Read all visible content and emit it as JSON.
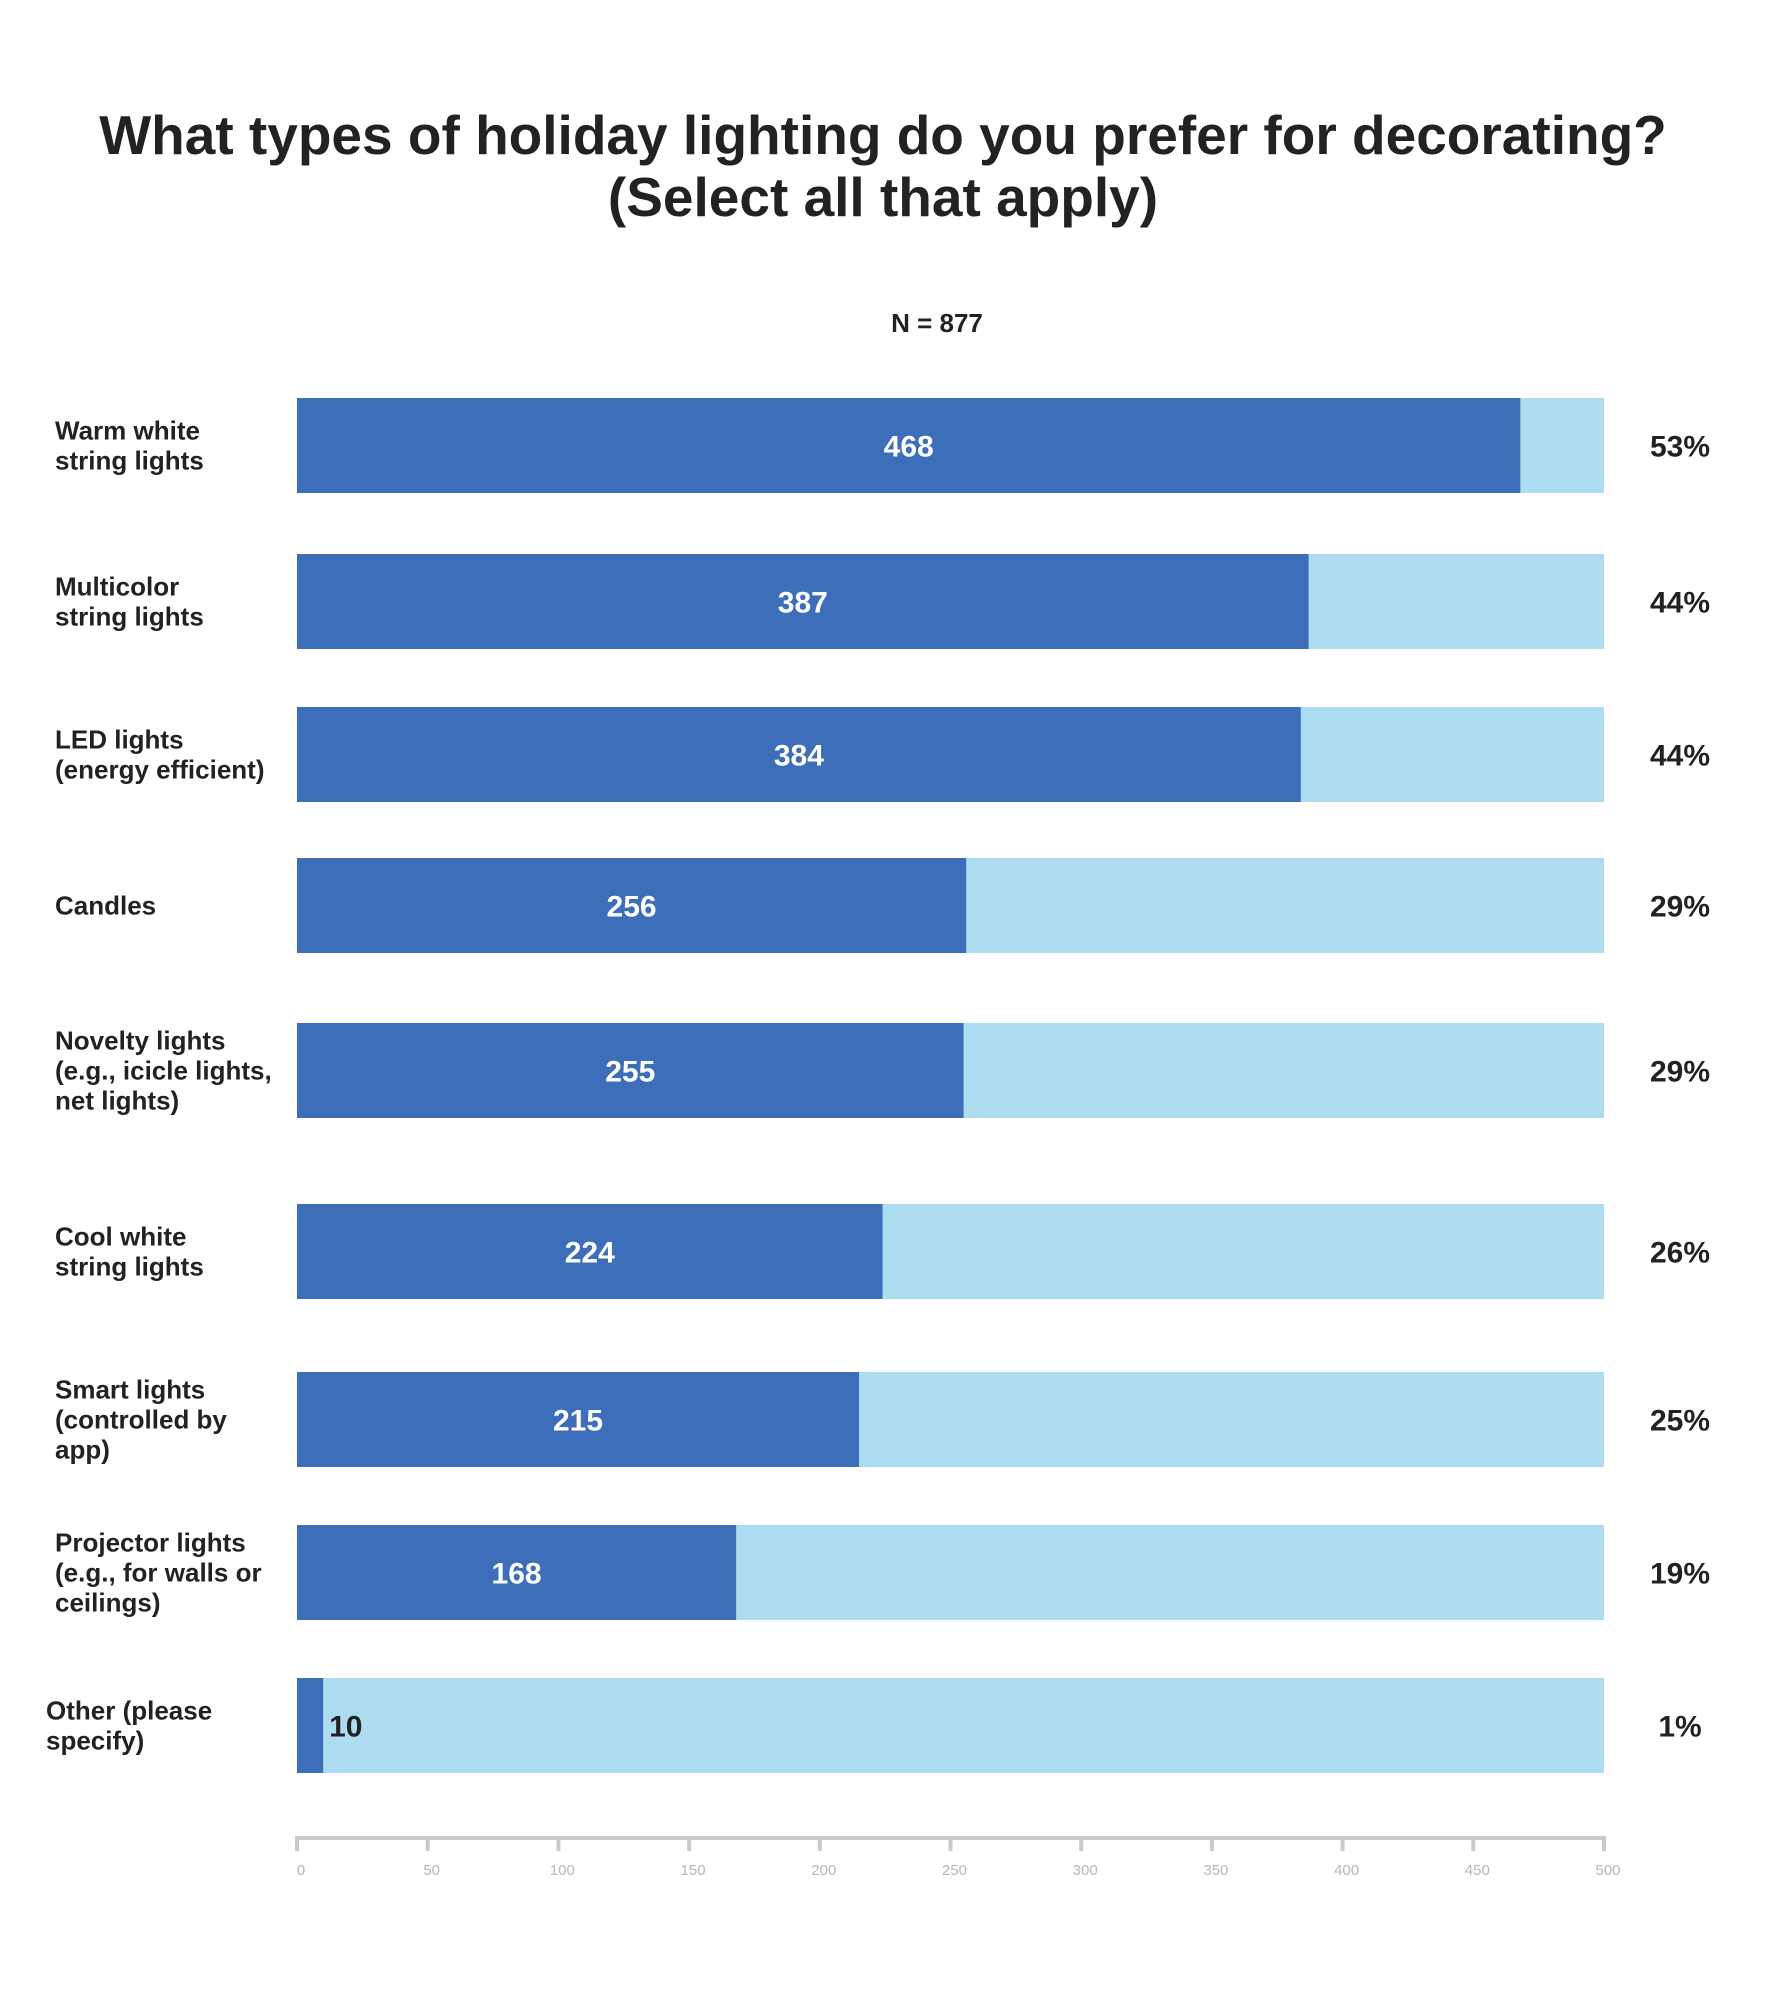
{
  "chart_data": {
    "type": "bar",
    "orientation": "horizontal",
    "title_lines": [
      "What types of holiday lighting do you prefer for decorating?",
      "(Select all that apply)"
    ],
    "subtitle": "N = 877",
    "categories": [
      [
        "Warm white",
        "string lights"
      ],
      [
        "Multicolor",
        "string lights"
      ],
      [
        "LED lights",
        "(energy efficient)"
      ],
      [
        "Candles"
      ],
      [
        "Novelty lights",
        "(e.g., icicle lights,",
        "net lights)"
      ],
      [
        "Cool white",
        "string lights"
      ],
      [
        "Smart lights",
        "(controlled by",
        "app)"
      ],
      [
        "Projector lights",
        "(e.g., for walls or",
        "ceilings)"
      ],
      [
        "Other (please",
        "specify)"
      ]
    ],
    "values": [
      468,
      387,
      384,
      256,
      255,
      224,
      215,
      168,
      10
    ],
    "value_labels": [
      "468",
      "387",
      "384",
      "256",
      "255",
      "224",
      "215",
      "168",
      "10"
    ],
    "percent_labels": [
      "53%",
      "44%",
      "44%",
      "29%",
      "29%",
      "26%",
      "25%",
      "19%",
      "1%"
    ],
    "xlim": [
      0,
      500
    ],
    "x_ticks": [
      "0",
      "50",
      "100",
      "150",
      "200",
      "250",
      "300",
      "350",
      "400",
      "450",
      "500"
    ],
    "xlabel": "",
    "ylabel": "",
    "grid": false,
    "legend": "none",
    "colors": {
      "value_bar": "#3d6eba",
      "track": "#addcf0",
      "axis": "#c8cacf",
      "text": "#222222",
      "tick_text": "#b4b7bd"
    }
  }
}
